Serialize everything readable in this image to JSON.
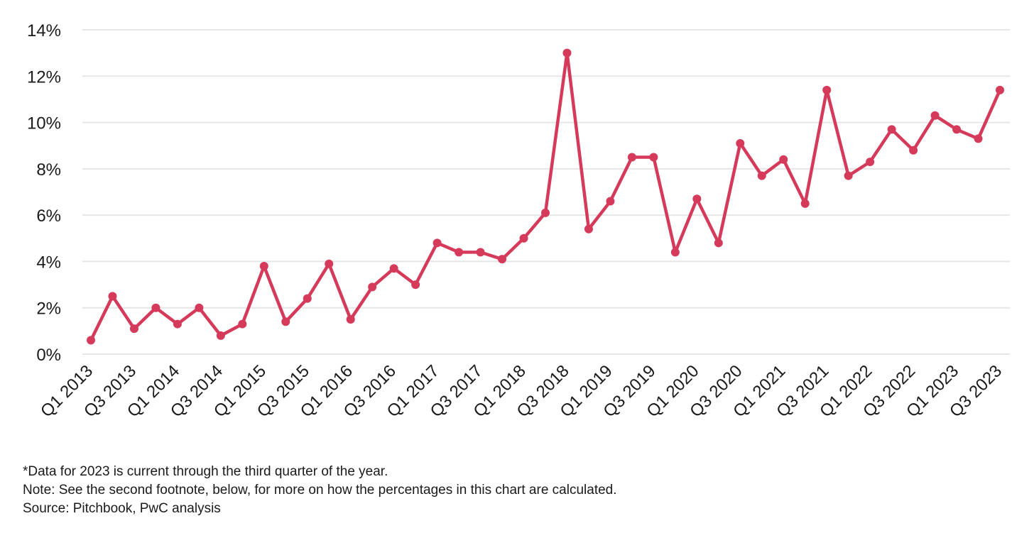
{
  "chart_data": {
    "type": "line",
    "x": [
      "Q1 2013",
      "Q2 2013",
      "Q3 2013",
      "Q4 2013",
      "Q1 2014",
      "Q2 2014",
      "Q3 2014",
      "Q4 2014",
      "Q1 2015",
      "Q2 2015",
      "Q3 2015",
      "Q4 2015",
      "Q1 2016",
      "Q2 2016",
      "Q3 2016",
      "Q4 2016",
      "Q1 2017",
      "Q2 2017",
      "Q3 2017",
      "Q4 2017",
      "Q1 2018",
      "Q2 2018",
      "Q3 2018",
      "Q4 2018",
      "Q1 2019",
      "Q2 2019",
      "Q3 2019",
      "Q4 2019",
      "Q1 2020",
      "Q2 2020",
      "Q3 2020",
      "Q4 2020",
      "Q1 2021",
      "Q2 2021",
      "Q3 2021",
      "Q4 2021",
      "Q1 2022",
      "Q2 2022",
      "Q3 2022",
      "Q4 2022",
      "Q1 2023",
      "Q2 2023",
      "Q3 2023"
    ],
    "x_tick_labels": [
      "Q1 2013",
      "Q3 2013",
      "Q1 2014",
      "Q3 2014",
      "Q1 2015",
      "Q3 2015",
      "Q1 2016",
      "Q3 2016",
      "Q1 2017",
      "Q3 2017",
      "Q1 2018",
      "Q3 2018",
      "Q1 2019",
      "Q3 2019",
      "Q1 2020",
      "Q3 2020",
      "Q1 2021",
      "Q3 2021",
      "Q1 2022",
      "Q3 2022",
      "Q1 2023",
      "Q3 2023"
    ],
    "series": [
      {
        "values": [
          0.6,
          2.5,
          1.1,
          2.0,
          1.3,
          2.0,
          0.8,
          1.3,
          3.8,
          1.4,
          2.4,
          3.9,
          1.5,
          2.9,
          3.7,
          3.0,
          4.8,
          4.4,
          4.4,
          4.1,
          5.0,
          6.1,
          13.0,
          5.4,
          6.6,
          8.5,
          8.5,
          4.4,
          6.7,
          4.8,
          9.1,
          7.7,
          8.4,
          6.5,
          11.4,
          7.7,
          8.3,
          9.7,
          8.8,
          10.3,
          9.7,
          9.3,
          11.4
        ]
      }
    ],
    "y_ticks": [
      0,
      2,
      4,
      6,
      8,
      10,
      12,
      14
    ],
    "y_tick_labels": [
      "0%",
      "2%",
      "4%",
      "6%",
      "8%",
      "10%",
      "12%",
      "14%"
    ],
    "ylim": [
      0,
      14
    ],
    "grid": true,
    "line_color": "#d63a5a",
    "grid_color": "#e6e6e6",
    "title": "",
    "xlabel": "",
    "ylabel": ""
  },
  "notes": {
    "line1": "*Data for 2023 is current through the third quarter of the year.",
    "line2": "Note: See the second footnote, below, for more on how the percentages in this chart are calculated.",
    "line3": "Source: Pitchbook, PwC analysis"
  }
}
